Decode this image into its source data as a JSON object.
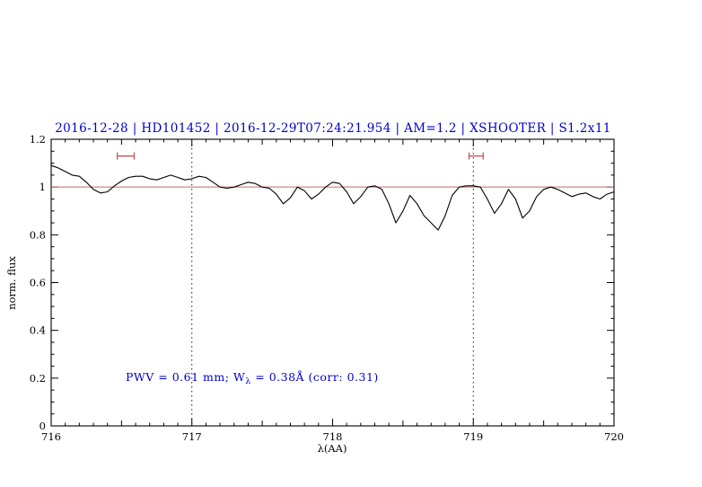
{
  "title": "2016-12-28 | HD101452 | 2016-12-29T07:24:21.954 | AM=1.2 | XSHOOTER | S1.2x11",
  "annotation": {
    "part1": "PWV  =  0.61 mm; W",
    "sub": "λ",
    "part2": "  =  0.38Å  (corr: 0.31)"
  },
  "colors": {
    "title": "#0000cd",
    "annotation": "#0000cd",
    "reference_line": "#cc6666",
    "marker": "#cc4444",
    "spectrum": "#000000",
    "axis": "#000000"
  },
  "chart_data": {
    "type": "line",
    "title": "2016-12-28 | HD101452 | 2016-12-29T07:24:21.954 | AM=1.2 | XSHOOTER | S1.2x11",
    "xlabel": "λ(AA)",
    "ylabel": "norm. flux",
    "xlim": [
      716,
      720
    ],
    "ylim": [
      0,
      1.2
    ],
    "grid": false,
    "legend": "none",
    "x_ticks": [
      716,
      717,
      718,
      719,
      720
    ],
    "x_tick_labels": [
      "716",
      "717",
      "718",
      "719",
      "720"
    ],
    "y_ticks": [
      0,
      0.2,
      0.4,
      0.6,
      0.8,
      1,
      1.2
    ],
    "y_tick_labels": [
      "0",
      "0.2",
      "0.4",
      "0.6",
      "0.8",
      "1",
      "1.2"
    ],
    "reference_line_y": 1.0,
    "dotted_vlines": [
      717,
      719
    ],
    "range_markers": [
      {
        "x_start": 716.47,
        "x_end": 716.59,
        "y": 1.13
      },
      {
        "x_start": 718.97,
        "x_end": 719.07,
        "y": 1.13
      }
    ],
    "annotation": {
      "text": "PWV = 0.61 mm; W_λ = 0.38Å (corr: 0.31)",
      "x": 716.53,
      "y": 0.2
    },
    "series": [
      {
        "name": "normalized spectrum",
        "x": [
          716.0,
          716.05,
          716.1,
          716.15,
          716.2,
          716.25,
          716.3,
          716.35,
          716.4,
          716.45,
          716.5,
          716.55,
          716.6,
          716.65,
          716.7,
          716.75,
          716.8,
          716.85,
          716.9,
          716.95,
          717.0,
          717.05,
          717.1,
          717.15,
          717.2,
          717.25,
          717.3,
          717.35,
          717.4,
          717.45,
          717.5,
          717.55,
          717.6,
          717.65,
          717.7,
          717.75,
          717.8,
          717.85,
          717.9,
          717.95,
          718.0,
          718.05,
          718.1,
          718.15,
          718.2,
          718.25,
          718.3,
          718.35,
          718.4,
          718.45,
          718.5,
          718.55,
          718.6,
          718.65,
          718.7,
          718.75,
          718.8,
          718.85,
          718.9,
          718.95,
          719.0,
          719.05,
          719.1,
          719.15,
          719.2,
          719.25,
          719.3,
          719.35,
          719.4,
          719.45,
          719.5,
          719.55,
          719.6,
          719.65,
          719.7,
          719.75,
          719.8,
          719.85,
          719.9,
          719.95,
          720.0
        ],
        "y": [
          1.09,
          1.08,
          1.065,
          1.05,
          1.045,
          1.02,
          0.99,
          0.975,
          0.98,
          1.005,
          1.025,
          1.04,
          1.045,
          1.045,
          1.035,
          1.03,
          1.04,
          1.05,
          1.04,
          1.03,
          1.035,
          1.045,
          1.04,
          1.02,
          1.0,
          0.995,
          1.0,
          1.01,
          1.02,
          1.015,
          1.0,
          0.995,
          0.97,
          0.93,
          0.955,
          1.0,
          0.985,
          0.95,
          0.97,
          1.0,
          1.02,
          1.015,
          0.98,
          0.93,
          0.96,
          1.0,
          1.005,
          0.99,
          0.93,
          0.85,
          0.9,
          0.965,
          0.93,
          0.88,
          0.85,
          0.82,
          0.88,
          0.965,
          1.0,
          1.005,
          1.005,
          1.0,
          0.95,
          0.89,
          0.93,
          0.99,
          0.95,
          0.87,
          0.9,
          0.96,
          0.99,
          1.0,
          0.99,
          0.975,
          0.96,
          0.97,
          0.975,
          0.96,
          0.95,
          0.97,
          0.98
        ]
      }
    ]
  }
}
